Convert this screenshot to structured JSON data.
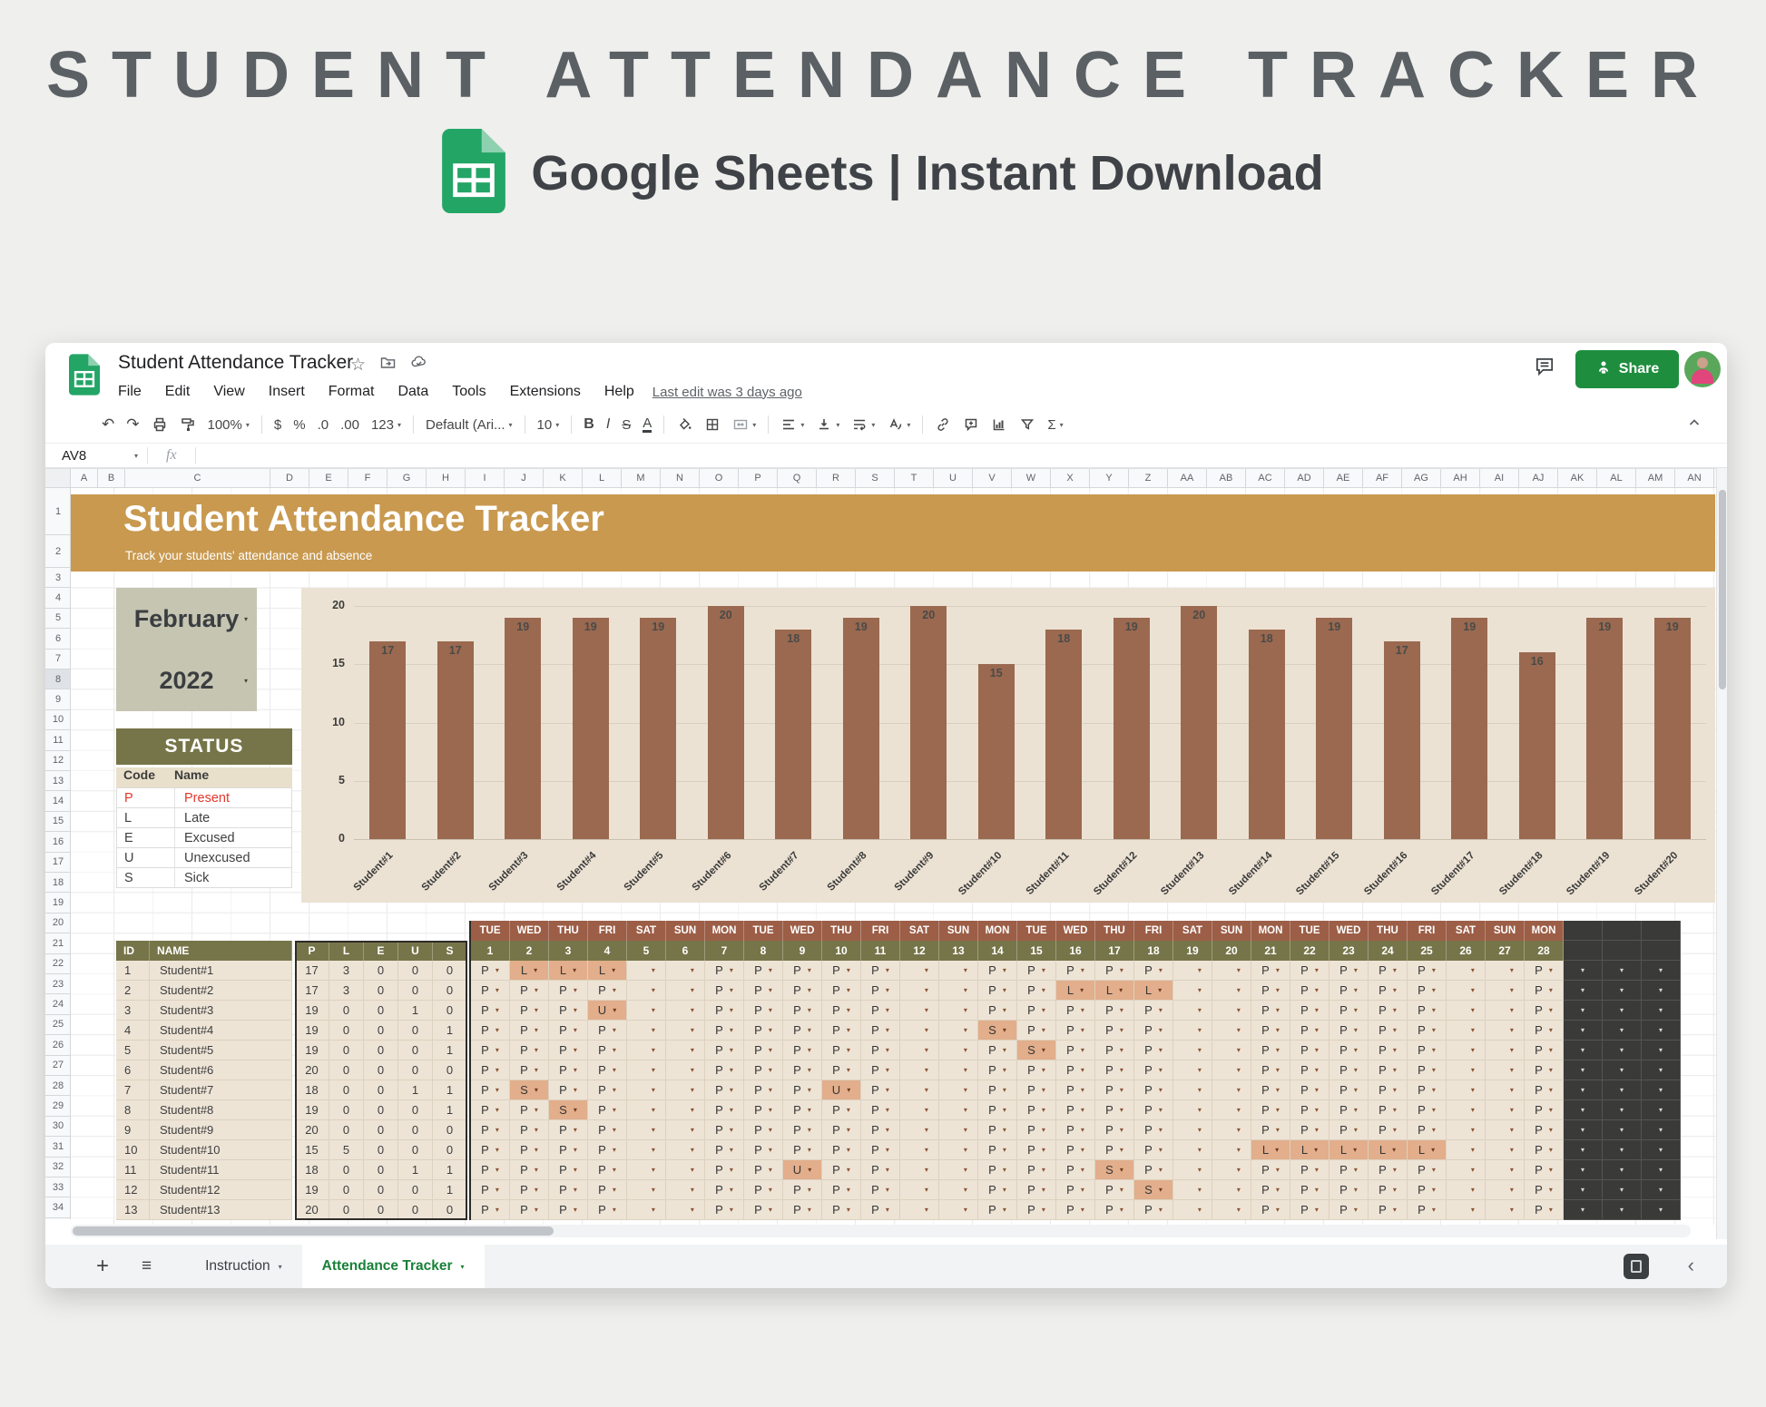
{
  "hero": {
    "title": "STUDENT ATTENDANCE TRACKER",
    "subtitle": "Google Sheets | Instant Download"
  },
  "titlebar": {
    "doc_title": "Student Attendance Tracker",
    "menus": [
      "File",
      "Edit",
      "View",
      "Insert",
      "Format",
      "Data",
      "Tools",
      "Extensions",
      "Help"
    ],
    "last_edit": "Last edit was 3 days ago",
    "share_label": "Share"
  },
  "toolbar": {
    "items": [
      {
        "t": "icon",
        "name": "undo-icon",
        "glyph": "↶"
      },
      {
        "t": "icon",
        "name": "redo-icon",
        "glyph": "↷"
      },
      {
        "t": "icon",
        "name": "print-icon"
      },
      {
        "t": "icon",
        "name": "paint-format-icon"
      },
      {
        "t": "text",
        "name": "zoom-select",
        "label": "100%",
        "dd": true
      },
      {
        "t": "sep"
      },
      {
        "t": "text",
        "name": "format-currency-button",
        "label": "$"
      },
      {
        "t": "text",
        "name": "format-percent-button",
        "label": "%"
      },
      {
        "t": "text",
        "name": "decrease-decimals-button",
        "label": ".0"
      },
      {
        "t": "text",
        "name": "increase-decimals-button",
        "label": ".00"
      },
      {
        "t": "text",
        "name": "more-formats-button",
        "label": "123",
        "dd": true
      },
      {
        "t": "sep"
      },
      {
        "t": "text",
        "name": "font-select",
        "label": "Default (Ari...",
        "dd": true
      },
      {
        "t": "sep"
      },
      {
        "t": "text",
        "name": "font-size-select",
        "label": "10",
        "dd": true
      },
      {
        "t": "sep"
      },
      {
        "t": "text",
        "name": "bold-button",
        "label": "B",
        "cls": "tb-b"
      },
      {
        "t": "text",
        "name": "italic-button",
        "label": "I",
        "cls": "tb-i"
      },
      {
        "t": "text",
        "name": "strikethrough-button",
        "label": "S",
        "cls": "tb-s"
      },
      {
        "t": "text",
        "name": "text-color-button",
        "label": "A",
        "cls": "tb-a"
      },
      {
        "t": "sep"
      },
      {
        "t": "icon",
        "name": "fill-color-icon"
      },
      {
        "t": "icon",
        "name": "borders-icon"
      },
      {
        "t": "icon",
        "name": "merge-cells-icon",
        "dd": true
      },
      {
        "t": "sep"
      },
      {
        "t": "icon",
        "name": "horizontal-align-icon",
        "dd": true
      },
      {
        "t": "icon",
        "name": "vertical-align-icon",
        "dd": true
      },
      {
        "t": "icon",
        "name": "text-wrap-icon",
        "dd": true
      },
      {
        "t": "icon",
        "name": "text-rotation-icon",
        "dd": true
      },
      {
        "t": "sep"
      },
      {
        "t": "icon",
        "name": "insert-link-icon"
      },
      {
        "t": "icon",
        "name": "insert-comment-icon"
      },
      {
        "t": "icon",
        "name": "insert-chart-icon"
      },
      {
        "t": "icon",
        "name": "filter-icon"
      },
      {
        "t": "text",
        "name": "functions-button",
        "label": "Σ",
        "dd": true
      }
    ]
  },
  "formula_bar": {
    "cell_ref": "AV8",
    "fx_label": "fx"
  },
  "grid": {
    "columns": [
      "A",
      "B",
      "C",
      "D",
      "E",
      "F",
      "G",
      "H",
      "I",
      "J",
      "K",
      "L",
      "M",
      "N",
      "O",
      "P",
      "Q",
      "R",
      "S",
      "T",
      "U",
      "V",
      "W",
      "X",
      "Y",
      "Z",
      "AA",
      "AB",
      "AC",
      "AD",
      "AE",
      "AF",
      "AG",
      "AH",
      "AI",
      "AJ",
      "AK",
      "AL",
      "AM",
      "AN"
    ],
    "row_count": 34,
    "selected_row": 8
  },
  "sheet": {
    "banner": {
      "title": "Student Attendance Tracker",
      "subtitle": "Track your students' attendance and absence"
    },
    "month_selector": {
      "month": "February",
      "year": "2022"
    },
    "status_legend": {
      "title": "STATUS",
      "col_code": "Code",
      "col_name": "Name",
      "items": [
        {
          "code": "P",
          "name": "Present",
          "highlight": true
        },
        {
          "code": "L",
          "name": "Late"
        },
        {
          "code": "E",
          "name": "Excused"
        },
        {
          "code": "U",
          "name": "Unexcused"
        },
        {
          "code": "S",
          "name": "Sick"
        }
      ]
    },
    "attendance": {
      "id_header": "ID",
      "name_header": "NAME",
      "codes": [
        "P",
        "L",
        "E",
        "U",
        "S"
      ],
      "days": [
        {
          "dow": "TUE",
          "date": 1
        },
        {
          "dow": "WED",
          "date": 2
        },
        {
          "dow": "THU",
          "date": 3
        },
        {
          "dow": "FRI",
          "date": 4
        },
        {
          "dow": "SAT",
          "date": 5
        },
        {
          "dow": "SUN",
          "date": 6
        },
        {
          "dow": "MON",
          "date": 7
        },
        {
          "dow": "TUE",
          "date": 8
        },
        {
          "dow": "WED",
          "date": 9
        },
        {
          "dow": "THU",
          "date": 10
        },
        {
          "dow": "FRI",
          "date": 11
        },
        {
          "dow": "SAT",
          "date": 12
        },
        {
          "dow": "SUN",
          "date": 13
        },
        {
          "dow": "MON",
          "date": 14
        },
        {
          "dow": "TUE",
          "date": 15
        },
        {
          "dow": "WED",
          "date": 16
        },
        {
          "dow": "THU",
          "date": 17
        },
        {
          "dow": "FRI",
          "date": 18
        },
        {
          "dow": "SAT",
          "date": 19
        },
        {
          "dow": "SUN",
          "date": 20
        },
        {
          "dow": "MON",
          "date": 21
        },
        {
          "dow": "TUE",
          "date": 22
        },
        {
          "dow": "WED",
          "date": 23
        },
        {
          "dow": "THU",
          "date": 24
        },
        {
          "dow": "FRI",
          "date": 25
        },
        {
          "dow": "SAT",
          "date": 26
        },
        {
          "dow": "SUN",
          "date": 27
        },
        {
          "dow": "MON",
          "date": 28
        }
      ],
      "extra_columns": 3,
      "rows": [
        {
          "id": 1,
          "name": "Student#1",
          "totals": [
            17,
            3,
            0,
            0,
            0
          ],
          "marks": {
            "2": "L",
            "3": "L",
            "4": "L"
          }
        },
        {
          "id": 2,
          "name": "Student#2",
          "totals": [
            17,
            3,
            0,
            0,
            0
          ],
          "marks": {
            "16": "L",
            "17": "L",
            "18": "L"
          }
        },
        {
          "id": 3,
          "name": "Student#3",
          "totals": [
            19,
            0,
            0,
            1,
            0
          ],
          "marks": {
            "4": "U"
          }
        },
        {
          "id": 4,
          "name": "Student#4",
          "totals": [
            19,
            0,
            0,
            0,
            1
          ],
          "marks": {
            "14": "S"
          }
        },
        {
          "id": 5,
          "name": "Student#5",
          "totals": [
            19,
            0,
            0,
            0,
            1
          ],
          "marks": {
            "15": "S"
          }
        },
        {
          "id": 6,
          "name": "Student#6",
          "totals": [
            20,
            0,
            0,
            0,
            0
          ],
          "marks": {}
        },
        {
          "id": 7,
          "name": "Student#7",
          "totals": [
            18,
            0,
            0,
            1,
            1
          ],
          "marks": {
            "2": "S",
            "10": "U"
          }
        },
        {
          "id": 8,
          "name": "Student#8",
          "totals": [
            19,
            0,
            0,
            0,
            1
          ],
          "marks": {
            "3": "S"
          }
        },
        {
          "id": 9,
          "name": "Student#9",
          "totals": [
            20,
            0,
            0,
            0,
            0
          ],
          "marks": {}
        },
        {
          "id": 10,
          "name": "Student#10",
          "totals": [
            15,
            5,
            0,
            0,
            0
          ],
          "marks": {
            "21": "L",
            "22": "L",
            "23": "L",
            "24": "L",
            "25": "L"
          }
        },
        {
          "id": 11,
          "name": "Student#11",
          "totals": [
            18,
            0,
            0,
            1,
            1
          ],
          "marks": {
            "9": "U",
            "17": "S"
          }
        },
        {
          "id": 12,
          "name": "Student#12",
          "totals": [
            19,
            0,
            0,
            0,
            1
          ],
          "marks": {
            "18": "S"
          }
        },
        {
          "id": 13,
          "name": "Student#13",
          "totals": [
            20,
            0,
            0,
            0,
            0
          ],
          "marks": {}
        }
      ]
    }
  },
  "chart_data": {
    "type": "bar",
    "title": "",
    "categories": [
      "Student#1",
      "Student#2",
      "Student#3",
      "Student#4",
      "Student#5",
      "Student#6",
      "Student#7",
      "Student#8",
      "Student#9",
      "Student#10",
      "Student#11",
      "Student#12",
      "Student#13",
      "Student#14",
      "Student#15",
      "Student#16",
      "Student#17",
      "Student#18",
      "Student#19",
      "Student#20"
    ],
    "values": [
      17,
      17,
      19,
      19,
      19,
      20,
      18,
      19,
      20,
      15,
      18,
      19,
      20,
      18,
      19,
      17,
      19,
      16,
      19,
      19
    ],
    "yticks": [
      0,
      5,
      10,
      15,
      20
    ],
    "ylim": [
      0,
      20
    ],
    "grid": true,
    "legend": "none",
    "bar_color": "#9a6950"
  },
  "tabbar": {
    "tabs": [
      {
        "label": "Instruction",
        "active": false
      },
      {
        "label": "Attendance Tracker",
        "active": true
      }
    ]
  },
  "colors": {
    "banner_ochre": "#c8994f",
    "olive": "#767549",
    "bar_brown": "#9a6950",
    "day_header_brown": "#9c5e47",
    "chart_panel_beige": "#ece2d3",
    "cell_beige": "#ede4d6",
    "highlight_salmon": "#e2ae8b",
    "dark_column": "#3a3a38",
    "status_red": "#e2382b",
    "share_green": "#1e8e3e",
    "active_tab_green": "#188038",
    "sheets_green": "#23a566"
  }
}
